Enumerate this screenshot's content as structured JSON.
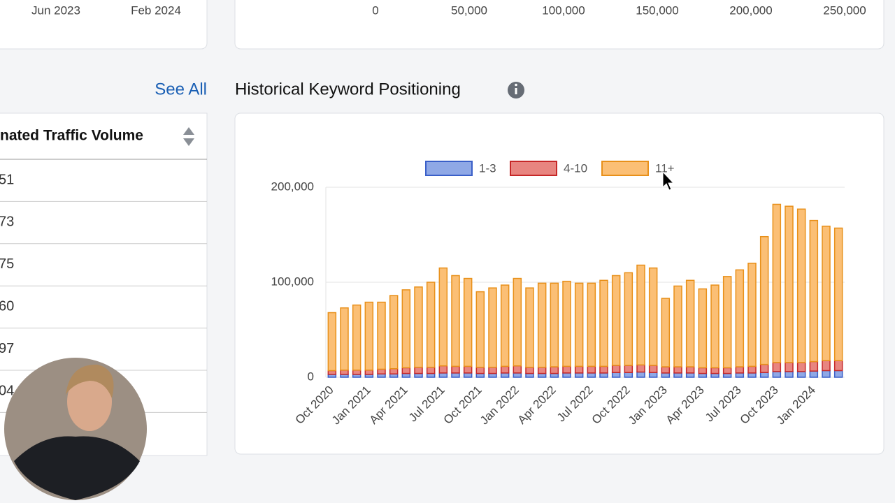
{
  "top_cards": {
    "left_axis_labels": [
      "Jun 2023",
      "Feb 2024"
    ],
    "right_axis_labels": [
      "0",
      "50,000",
      "100,000",
      "150,000",
      "200,000",
      "250,000"
    ]
  },
  "see_all": "See All",
  "section_title": "Historical Keyword Positioning",
  "table": {
    "header": "nated Traffic Volume",
    "rows": [
      "51",
      "73",
      "75",
      "60",
      "97",
      "04"
    ]
  },
  "chart_data": {
    "type": "stacked_bar",
    "categories": [
      "Oct 2020",
      null,
      null,
      "Jan 2021",
      null,
      null,
      "Apr 2021",
      null,
      null,
      "Jul 2021",
      null,
      null,
      "Oct 2021",
      null,
      null,
      "Jan 2022",
      null,
      null,
      "Apr 2022",
      null,
      null,
      "Jul 2022",
      null,
      null,
      "Oct 2022",
      null,
      null,
      "Jan 2023",
      null,
      null,
      "Apr 2023",
      null,
      null,
      "Jul 2023",
      null,
      null,
      "Oct 2023",
      null,
      null,
      "Jan 2024",
      null,
      null
    ],
    "series": [
      {
        "name": "1-3",
        "color": "#8fa8e6",
        "stroke": "#3a5fc8",
        "values": [
          3000,
          3000,
          3000,
          3000,
          3500,
          3500,
          4000,
          4000,
          4000,
          4500,
          4500,
          4500,
          4000,
          4000,
          4500,
          4500,
          4000,
          4000,
          4000,
          4500,
          4500,
          4500,
          4500,
          5000,
          5000,
          5500,
          5000,
          4500,
          4500,
          4500,
          4000,
          4000,
          4000,
          4500,
          4500,
          5000,
          6000,
          6000,
          6000,
          6500,
          7000,
          7000
        ]
      },
      {
        "name": "4-10",
        "color": "#e88580",
        "stroke": "#c62828",
        "values": [
          4000,
          4500,
          4500,
          4500,
          5000,
          5500,
          6000,
          6500,
          6500,
          7500,
          7000,
          7000,
          6500,
          6500,
          7000,
          7500,
          6500,
          6500,
          7000,
          7000,
          7000,
          7000,
          7000,
          7500,
          7500,
          7500,
          7500,
          6500,
          6500,
          6500,
          6000,
          6000,
          6000,
          6500,
          7000,
          8500,
          9500,
          9500,
          9500,
          10000,
          10500,
          10500
        ]
      },
      {
        "name": "11+",
        "color": "#fbbf75",
        "stroke": "#e8901a",
        "values": [
          61000,
          65500,
          68500,
          71500,
          70500,
          77000,
          82000,
          84500,
          89500,
          103000,
          95500,
          92500,
          79500,
          83500,
          85500,
          92000,
          83500,
          88500,
          88000,
          89500,
          87500,
          87500,
          90500,
          94500,
          97500,
          105000,
          102500,
          72000,
          85000,
          91000,
          83000,
          87000,
          96000,
          102000,
          108500,
          134500,
          166500,
          164500,
          161500,
          148500,
          141500,
          139500
        ]
      }
    ],
    "ylim": [
      0,
      200000
    ],
    "yticks": [
      0,
      {
        "value": 100000,
        "label": "100,000"
      },
      {
        "value": 200000,
        "label": "200,000"
      }
    ],
    "grid": true,
    "legend": "top"
  }
}
